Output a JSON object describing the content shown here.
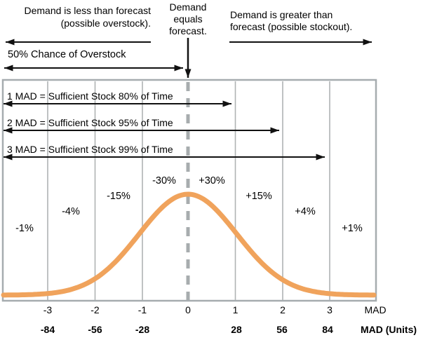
{
  "annotations": {
    "demand_less": {
      "line1": "Demand is less than forecast",
      "line2": "(possible overstock)."
    },
    "demand_equals": {
      "line1": "Demand",
      "line2": "equals",
      "line3": "forecast."
    },
    "demand_greater": {
      "line1": "Demand is greater than",
      "line2": "forecast (possible stockout)."
    },
    "overstock_chance": "50% Chance of Overstock"
  },
  "chart_data": {
    "type": "area",
    "curve": {
      "distribution": "normal",
      "mean_mad": 0,
      "sigma_mad": 1
    },
    "grid": true,
    "legend": false,
    "xlim_mad": [
      -4,
      4
    ],
    "mad_bands": [
      {
        "mad": 1,
        "coverage_pct": 80,
        "label": "1 MAD = Sufficient Stock 80% of Time"
      },
      {
        "mad": 2,
        "coverage_pct": 95,
        "label": "2 MAD = Sufficient Stock 95% of Time"
      },
      {
        "mad": 3,
        "coverage_pct": 99,
        "label": "3 MAD = Sufficient Stock 99% of Time"
      }
    ],
    "segments": [
      {
        "from_mad": -4,
        "to_mad": -3,
        "value_pct": -1,
        "label": "-1%"
      },
      {
        "from_mad": -3,
        "to_mad": -2,
        "value_pct": -4,
        "label": "-4%"
      },
      {
        "from_mad": -2,
        "to_mad": -1,
        "value_pct": -15,
        "label": "-15%"
      },
      {
        "from_mad": -1,
        "to_mad": 0,
        "value_pct": -30,
        "label": "-30%"
      },
      {
        "from_mad": 0,
        "to_mad": 1,
        "value_pct": 30,
        "label": "+30%"
      },
      {
        "from_mad": 1,
        "to_mad": 2,
        "value_pct": 15,
        "label": "+15%"
      },
      {
        "from_mad": 2,
        "to_mad": 3,
        "value_pct": 4,
        "label": "+4%"
      },
      {
        "from_mad": 3,
        "to_mad": 4,
        "value_pct": 1,
        "label": "+1%"
      }
    ],
    "x_axis_mad": {
      "unit_label": "MAD",
      "ticks": [
        "-3",
        "-2",
        "-1",
        "0",
        "1",
        "2",
        "3"
      ]
    },
    "x_axis_units": {
      "unit_label": "MAD (Units)",
      "ticks": [
        "-84",
        "-56",
        "-28",
        "28",
        "56",
        "84"
      ]
    }
  },
  "colors": {
    "curve": "#F0A35C",
    "grid": "#AFB3B4",
    "frame": "#A6ACAF",
    "dashed_center_line": "#A7ACAE",
    "arrow": "#111111",
    "text": "#000000",
    "background": "#FFFFFF"
  }
}
